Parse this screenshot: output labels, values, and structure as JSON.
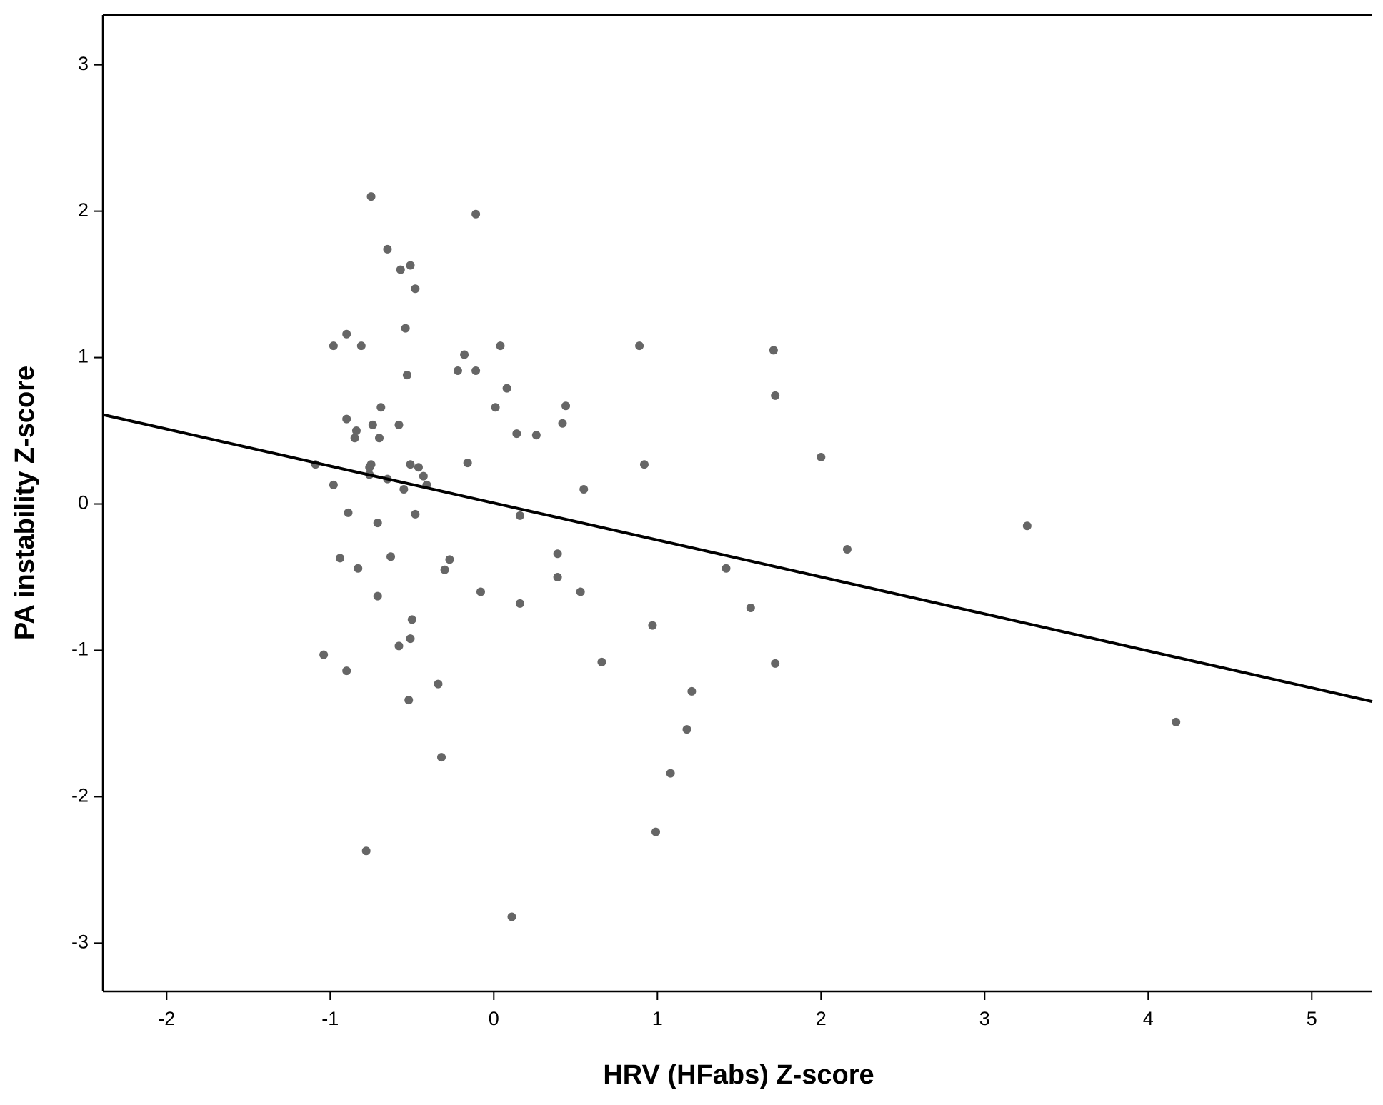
{
  "chart_data": {
    "type": "scatter",
    "x_label": "HRV (HFabs) Z-score",
    "y_label": "PA instability Z-score",
    "xlim": [
      -2.39,
      5.37
    ],
    "ylim": [
      -3.33,
      3.34
    ],
    "xticks": [
      -2,
      -1,
      0,
      1,
      2,
      3,
      4,
      5
    ],
    "yticks": [
      -3,
      -2,
      -1,
      0,
      1,
      2,
      3
    ],
    "color": "#666666",
    "x": [
      -0.75,
      -0.11,
      -0.65,
      -0.57,
      -0.51,
      -0.48,
      -0.54,
      -0.9,
      -0.98,
      -0.81,
      0.04,
      0.89,
      1.71,
      -0.18,
      -0.22,
      -0.11,
      -0.53,
      0.08,
      1.72,
      -0.69,
      0.01,
      0.44,
      -0.9,
      -0.74,
      -0.58,
      0.42,
      -0.84,
      -0.85,
      -0.7,
      0.14,
      0.26,
      2.0,
      -0.16,
      0.92,
      -1.09,
      -0.76,
      -0.75,
      -0.51,
      -0.46,
      -0.76,
      -0.43,
      -0.65,
      -0.41,
      -0.98,
      -0.55,
      0.55,
      -0.89,
      -0.48,
      0.16,
      -0.71,
      3.26,
      2.16,
      0.39,
      -0.94,
      -0.63,
      -0.27,
      1.42,
      -0.83,
      -0.3,
      0.39,
      -0.08,
      0.53,
      -0.71,
      0.16,
      1.57,
      -0.5,
      0.97,
      -0.51,
      -0.58,
      -1.04,
      0.66,
      1.72,
      -0.9,
      1.21,
      -0.34,
      -0.52,
      4.17,
      1.18,
      -0.32,
      1.08,
      0.99,
      -0.78,
      0.11
    ],
    "values": [
      2.1,
      1.98,
      1.74,
      1.6,
      1.63,
      1.47,
      1.2,
      1.16,
      1.08,
      1.08,
      1.08,
      1.08,
      1.05,
      1.02,
      0.91,
      0.91,
      0.88,
      0.79,
      0.74,
      0.66,
      0.66,
      0.67,
      0.58,
      0.54,
      0.54,
      0.55,
      0.5,
      0.45,
      0.45,
      0.48,
      0.47,
      0.32,
      0.28,
      0.27,
      0.27,
      0.25,
      0.27,
      0.27,
      0.25,
      0.2,
      0.19,
      0.17,
      0.13,
      0.13,
      0.1,
      0.1,
      -0.06,
      -0.07,
      -0.08,
      -0.13,
      -0.15,
      -0.31,
      -0.34,
      -0.37,
      -0.36,
      -0.38,
      -0.44,
      -0.44,
      -0.45,
      -0.5,
      -0.6,
      -0.6,
      -0.63,
      -0.68,
      -0.71,
      -0.79,
      -0.83,
      -0.92,
      -0.97,
      -1.03,
      -1.08,
      -1.09,
      -1.14,
      -1.28,
      -1.23,
      -1.34,
      -1.49,
      -1.54,
      -1.73,
      -1.84,
      -2.24,
      -2.37,
      -2.82
    ],
    "fit_line": {
      "x": [
        -2.39,
        5.37
      ],
      "y": [
        0.61,
        -1.35
      ],
      "color": "#000000"
    }
  }
}
